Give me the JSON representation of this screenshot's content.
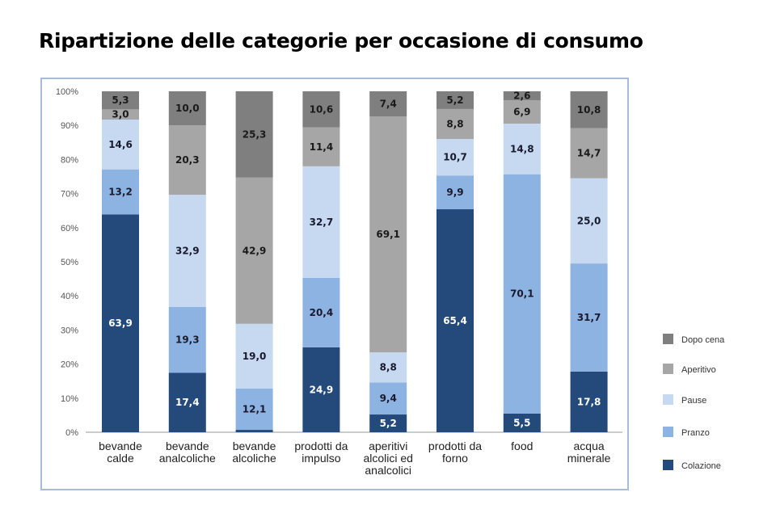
{
  "chart_data": {
    "type": "bar",
    "stacked": true,
    "title": "Ripartizione delle categorie per occasione di consumo",
    "categories": [
      [
        "bevande",
        "calde"
      ],
      [
        "bevande",
        "analcoliche"
      ],
      [
        "bevande",
        "alcoliche"
      ],
      [
        "prodotti da",
        "impulso"
      ],
      [
        "aperitivi",
        "alcolici ed",
        "analcolici"
      ],
      [
        "prodotti da",
        "forno"
      ],
      [
        "food"
      ],
      [
        "acqua",
        "minerale"
      ]
    ],
    "ylim": [
      0,
      100
    ],
    "yticks": [
      "0%",
      "10%",
      "20%",
      "30%",
      "40%",
      "50%",
      "60%",
      "70%",
      "80%",
      "90%",
      "100%"
    ],
    "legend_position": "right",
    "series": [
      {
        "name": "Colazione",
        "color": "#244a7c",
        "label_color": "#ffffff",
        "values": [
          63.9,
          17.4,
          0.7,
          24.9,
          5.2,
          65.4,
          5.5,
          17.8
        ],
        "labels": [
          "63,9",
          "17,4",
          "0,7",
          "24,9",
          "5,2",
          "65,4",
          "5,5",
          "17,8"
        ]
      },
      {
        "name": "Pranzo",
        "color": "#8db3e2",
        "label_color": "#1a1a2e",
        "values": [
          13.2,
          19.3,
          12.1,
          20.4,
          9.4,
          9.9,
          70.1,
          31.7
        ],
        "labels": [
          "13,2",
          "19,3",
          "12,1",
          "20,4",
          "9,4",
          "9,9",
          "70,1",
          "31,7"
        ]
      },
      {
        "name": "Pause",
        "color": "#c6d9f1",
        "label_color": "#1a1a2e",
        "values": [
          14.6,
          32.9,
          19.0,
          32.7,
          8.8,
          10.7,
          14.8,
          25.0
        ],
        "labels": [
          "14,6",
          "32,9",
          "19,0",
          "32,7",
          "8,8",
          "10,7",
          "14,8",
          "25,0"
        ]
      },
      {
        "name": "Aperitivo",
        "color": "#a6a6a6",
        "label_color": "#1a1a1a",
        "values": [
          3.0,
          20.3,
          42.9,
          11.4,
          69.1,
          8.8,
          6.9,
          14.7
        ],
        "labels": [
          "3,0",
          "20,3",
          "42,9",
          "11,4",
          "69,1",
          "8,8",
          "6,9",
          "14,7"
        ]
      },
      {
        "name": "Dopo cena",
        "color": "#7f7f7f",
        "label_color": "#1a1a1a",
        "values": [
          5.3,
          10.0,
          25.3,
          10.6,
          7.4,
          5.2,
          2.6,
          10.8
        ],
        "labels": [
          "5,3",
          "10,0",
          "25,3",
          "10,6",
          "7,4",
          "5,2",
          "2,6",
          "10,8"
        ]
      }
    ]
  }
}
